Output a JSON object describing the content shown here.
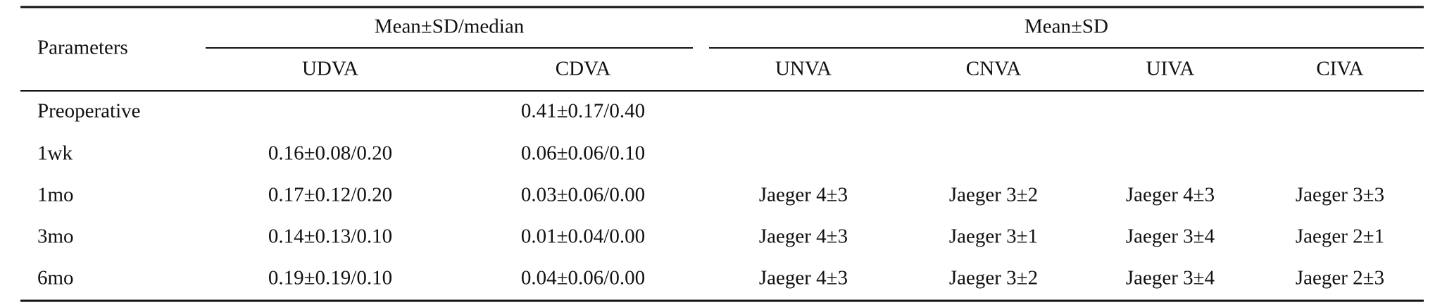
{
  "table": {
    "header": {
      "row_label": "Parameters",
      "groups": [
        {
          "label": "Mean±SD/median",
          "columns": [
            "UDVA",
            "CDVA"
          ]
        },
        {
          "label": "Mean±SD",
          "columns": [
            "UNVA",
            "CNVA",
            "UIVA",
            "CIVA"
          ]
        }
      ]
    },
    "rows": [
      {
        "label": "Preoperative",
        "cells": [
          null,
          "0.41±0.17/0.40",
          null,
          null,
          null,
          null
        ]
      },
      {
        "label": "1wk",
        "cells": [
          "0.16±0.08/0.20",
          "0.06±0.06/0.10",
          null,
          null,
          null,
          null
        ]
      },
      {
        "label": "1mo",
        "cells": [
          "0.17±0.12/0.20",
          "0.03±0.06/0.00",
          "Jaeger 4±3",
          "Jaeger 3±2",
          "Jaeger 4±3",
          "Jaeger 3±3"
        ]
      },
      {
        "label": "3mo",
        "cells": [
          "0.14±0.13/0.10",
          "0.01±0.04/0.00",
          "Jaeger 4±3",
          "Jaeger 3±1",
          "Jaeger 3±4",
          "Jaeger 2±1"
        ]
      },
      {
        "label": "6mo",
        "cells": [
          "0.19±0.19/0.10",
          "0.04±0.06/0.00",
          "Jaeger 4±3",
          "Jaeger 3±2",
          "Jaeger 3±4",
          "Jaeger 2±3"
        ]
      }
    ]
  }
}
